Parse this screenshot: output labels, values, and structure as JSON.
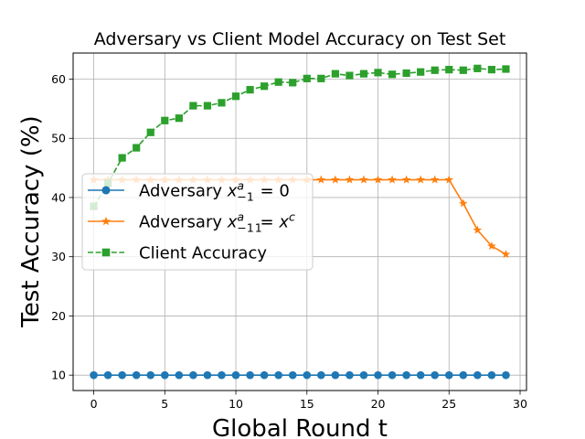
{
  "chart_data": {
    "type": "line",
    "title": "Adversary vs Client Model Accuracy on Test Set",
    "xlabel": "Global Round t",
    "ylabel": "Test Accuracy (%)",
    "xlim": [
      -1.45,
      30.45
    ],
    "ylim": [
      7.4,
      64.4
    ],
    "xticks": [
      0,
      5,
      10,
      15,
      20,
      25,
      30
    ],
    "yticks": [
      10,
      20,
      30,
      40,
      50,
      60
    ],
    "grid": true,
    "legend_position": "center-left",
    "x": [
      0,
      1,
      2,
      3,
      4,
      5,
      6,
      7,
      8,
      9,
      10,
      11,
      12,
      13,
      14,
      15,
      16,
      17,
      18,
      19,
      20,
      21,
      22,
      23,
      24,
      25,
      26,
      27,
      28,
      29
    ],
    "series": [
      {
        "name_parts": [
          "Adversary ",
          "x",
          "a",
          "−1",
          " = 0"
        ],
        "color": "#1f77b4",
        "marker": "circle",
        "linestyle": "solid",
        "values": [
          10,
          10,
          10,
          10,
          10,
          10,
          10,
          10,
          10,
          10,
          10,
          10,
          10,
          10,
          10,
          10,
          10,
          10,
          10,
          10,
          10,
          10,
          10,
          10,
          10,
          10,
          10,
          10,
          10,
          10
        ]
      },
      {
        "name_parts": [
          "Adversary ",
          "x",
          "a",
          "−1",
          " = ",
          "x",
          "c",
          "1"
        ],
        "color": "#ff7f0e",
        "marker": "star",
        "linestyle": "solid",
        "values": [
          43,
          43,
          43,
          43,
          43,
          43,
          43,
          43,
          43,
          43,
          43,
          43,
          43,
          43,
          43,
          43,
          43,
          43,
          43,
          43,
          43,
          43,
          43,
          43,
          43,
          43,
          39,
          34.5,
          31.8,
          30.4
        ]
      },
      {
        "name": "Client Accuracy",
        "color": "#2ca02c",
        "marker": "square",
        "linestyle": "dashed",
        "values": [
          38.5,
          42.4,
          46.7,
          48.4,
          51,
          53,
          53.4,
          55.5,
          55.5,
          56,
          57.1,
          58.2,
          58.8,
          59.5,
          59.4,
          60.1,
          60.1,
          60.9,
          60.6,
          60.9,
          61.1,
          60.8,
          61,
          61.2,
          61.5,
          61.6,
          61.5,
          61.8,
          61.6,
          61.7
        ]
      }
    ]
  }
}
